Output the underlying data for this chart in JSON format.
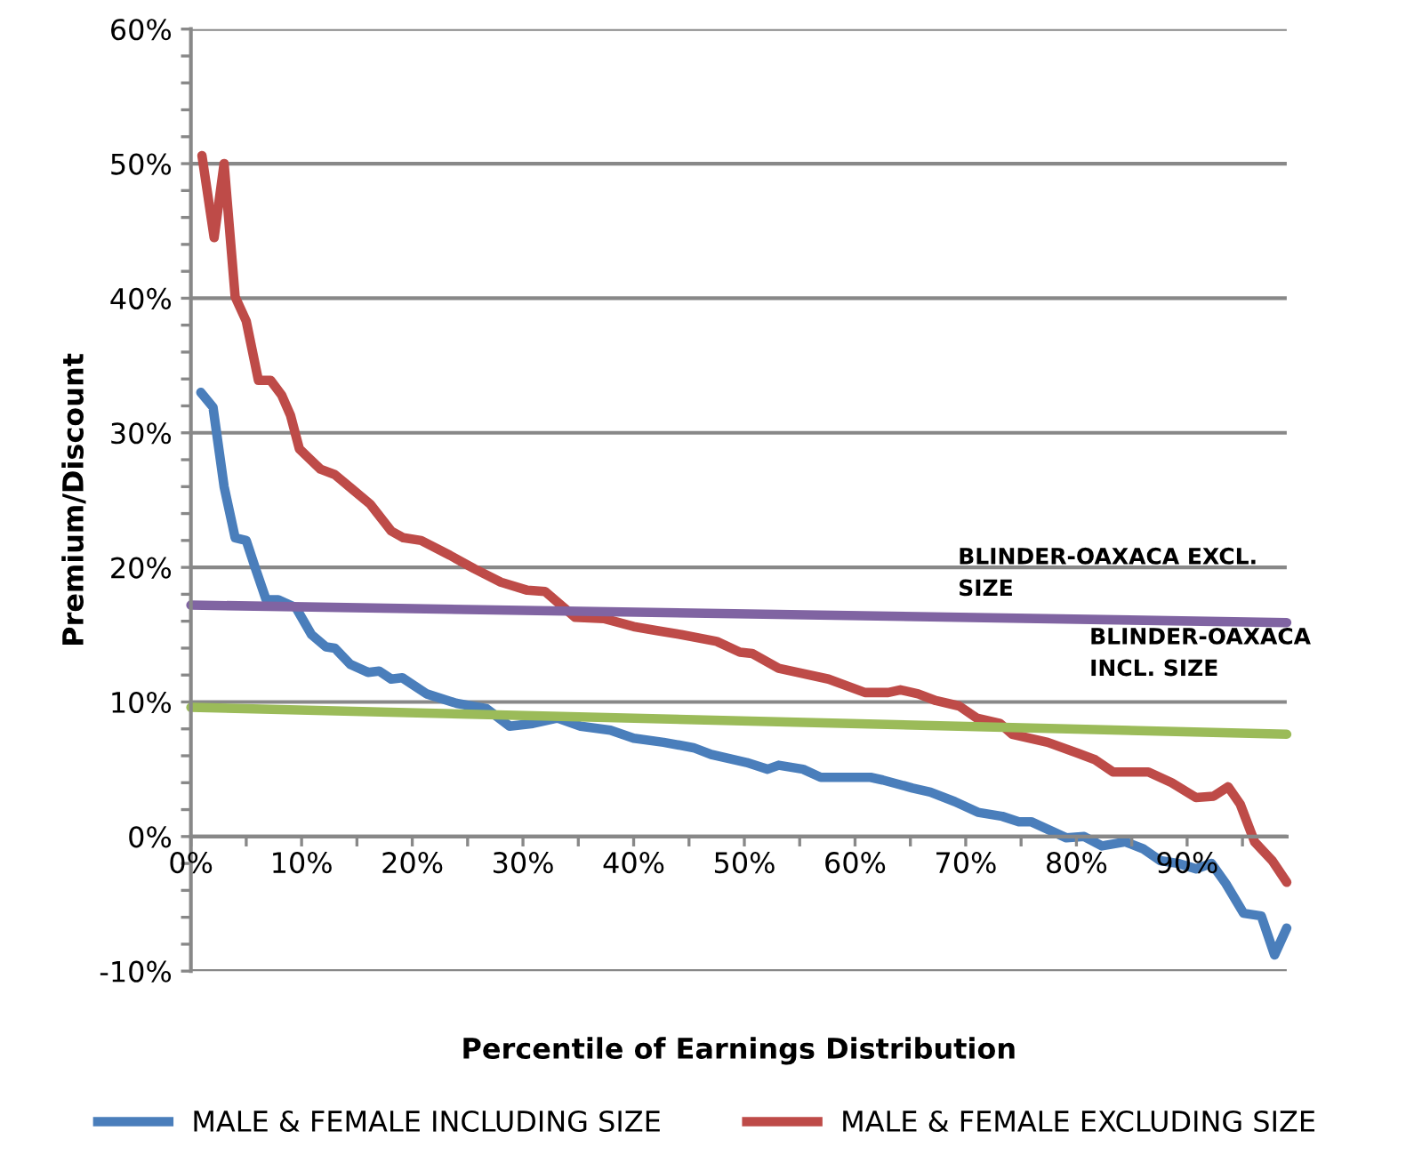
{
  "chart_data": {
    "type": "line",
    "xlabel": "Percentile of Earnings Distribution",
    "ylabel": "Premium/Discount",
    "xlim": [
      0,
      99
    ],
    "ylim": [
      -10,
      60
    ],
    "xticks": [
      {
        "value": 0,
        "label": "0%"
      },
      {
        "value": 5,
        "label": null
      },
      {
        "value": 10,
        "label": "10%"
      },
      {
        "value": 15,
        "label": null
      },
      {
        "value": 20,
        "label": "20%"
      },
      {
        "value": 25,
        "label": null
      },
      {
        "value": 30,
        "label": "30%"
      },
      {
        "value": 35,
        "label": null
      },
      {
        "value": 40,
        "label": "40%"
      },
      {
        "value": 45,
        "label": null
      },
      {
        "value": 50,
        "label": "50%"
      },
      {
        "value": 55,
        "label": null
      },
      {
        "value": 60,
        "label": "60%"
      },
      {
        "value": 65,
        "label": null
      },
      {
        "value": 70,
        "label": "70%"
      },
      {
        "value": 75,
        "label": null
      },
      {
        "value": 80,
        "label": "80%"
      },
      {
        "value": 85,
        "label": null
      },
      {
        "value": 90,
        "label": "90%"
      },
      {
        "value": 95,
        "label": null
      }
    ],
    "yticks": [
      {
        "value": -10,
        "label": "-10%"
      },
      {
        "value": -8,
        "label": null
      },
      {
        "value": -6,
        "label": null
      },
      {
        "value": -4,
        "label": null
      },
      {
        "value": -2,
        "label": null
      },
      {
        "value": 0,
        "label": "0%"
      },
      {
        "value": 2,
        "label": null
      },
      {
        "value": 4,
        "label": null
      },
      {
        "value": 6,
        "label": null
      },
      {
        "value": 8,
        "label": null
      },
      {
        "value": 10,
        "label": "10%"
      },
      {
        "value": 12,
        "label": null
      },
      {
        "value": 14,
        "label": null
      },
      {
        "value": 16,
        "label": null
      },
      {
        "value": 18,
        "label": null
      },
      {
        "value": 20,
        "label": "20%"
      },
      {
        "value": 22,
        "label": null
      },
      {
        "value": 24,
        "label": null
      },
      {
        "value": 26,
        "label": null
      },
      {
        "value": 28,
        "label": null
      },
      {
        "value": 30,
        "label": "30%"
      },
      {
        "value": 32,
        "label": null
      },
      {
        "value": 34,
        "label": null
      },
      {
        "value": 36,
        "label": null
      },
      {
        "value": 38,
        "label": null
      },
      {
        "value": 40,
        "label": "40%"
      },
      {
        "value": 42,
        "label": null
      },
      {
        "value": 44,
        "label": null
      },
      {
        "value": 46,
        "label": null
      },
      {
        "value": 48,
        "label": null
      },
      {
        "value": 50,
        "label": "50%"
      },
      {
        "value": 52,
        "label": null
      },
      {
        "value": 54,
        "label": null
      },
      {
        "value": 56,
        "label": null
      },
      {
        "value": 58,
        "label": null
      },
      {
        "value": 60,
        "label": "60%"
      }
    ],
    "grid": "y",
    "legend": "bottom",
    "marker": "none",
    "line_style": "solid",
    "series": [
      {
        "name": "MALE & FEMALE INCLUDING SIZE",
        "color": "#4a7ebb",
        "x": [
          0.9,
          2,
          3,
          4,
          5,
          5.8,
          6.8,
          7.9,
          9.5,
          10.9,
          12.2,
          13,
          14.4,
          16,
          17,
          18.1,
          19.1,
          21.3,
          24,
          26.7,
          28.8,
          30.9,
          33.1,
          35.2,
          37.9,
          40,
          42.7,
          45.4,
          47,
          50.2,
          52.1,
          53.1,
          55.3,
          56.9,
          61.4,
          62.5,
          65.2,
          66.8,
          69,
          71.1,
          73.3,
          74.8,
          75.9,
          79.1,
          80.7,
          82.3,
          84.4,
          86,
          87.6,
          89.2,
          90.8,
          92.2,
          93.5,
          95.1,
          96.7,
          97.9,
          99
        ],
        "values": [
          33.0,
          31.9,
          26,
          22.2,
          22,
          20,
          17.6,
          17.6,
          17,
          15,
          14.1,
          14,
          12.8,
          12.2,
          12.3,
          11.7,
          11.8,
          10.6,
          9.9,
          9.5,
          8.2,
          8.4,
          8.8,
          8.2,
          7.9,
          7.3,
          7.0,
          6.6,
          6.1,
          5.5,
          5.0,
          5.3,
          5.0,
          4.4,
          4.4,
          4.2,
          3.6,
          3.3,
          2.6,
          1.8,
          1.5,
          1.1,
          1.1,
          -0.1,
          0,
          -0.7,
          -0.4,
          -0.9,
          -1.8,
          -2.0,
          -2.4,
          -2,
          -3.5,
          -5.7,
          -5.9,
          -8.8,
          -6.8
        ]
      },
      {
        "name": "MALE & FEMALE EXCLUDING SIZE",
        "color": "#be4b48",
        "x": [
          1,
          2.1,
          3,
          4,
          5,
          6.1,
          7.2,
          8.2,
          9,
          9.8,
          11.7,
          13,
          14.6,
          16.2,
          18.1,
          19.2,
          20.8,
          23.4,
          25.6,
          28,
          30.4,
          32,
          34.7,
          37.3,
          40,
          42.1,
          44.3,
          47.5,
          49.6,
          50.7,
          53.1,
          57.6,
          60.9,
          63,
          64.1,
          65.7,
          67.3,
          69.4,
          71,
          73.1,
          74.2,
          77.4,
          80.1,
          81.7,
          83.3,
          86.5,
          88.6,
          90.8,
          92.4,
          93.7,
          94.8,
          96.1,
          97.7,
          99
        ],
        "values": [
          50.6,
          44.5,
          50,
          40.1,
          38.3,
          33.9,
          33.9,
          32.8,
          31.3,
          28.8,
          27.3,
          26.9,
          25.8,
          24.7,
          22.7,
          22.2,
          22.0,
          20.9,
          19.9,
          18.9,
          18.3,
          18.2,
          16.3,
          16.2,
          15.6,
          15.3,
          15.0,
          14.5,
          13.7,
          13.6,
          12.5,
          11.7,
          10.7,
          10.7,
          10.9,
          10.6,
          10.1,
          9.7,
          8.8,
          8.4,
          7.6,
          7.0,
          6.2,
          5.7,
          4.8,
          4.8,
          4.0,
          2.9,
          3.0,
          3.7,
          2.4,
          -0.4,
          -1.8,
          -3.4
        ]
      },
      {
        "color": "#8064a2",
        "x": [
          0,
          99
        ],
        "values": [
          17.2,
          15.9
        ]
      },
      {
        "color": "#9bbb59",
        "x": [
          0,
          99
        ],
        "values": [
          9.6,
          7.6
        ]
      }
    ],
    "annotations": [
      "BLINDER-OAXACA EXCL.\nSIZE",
      "BLINDER-OAXACA\nINCL. SIZE"
    ]
  }
}
